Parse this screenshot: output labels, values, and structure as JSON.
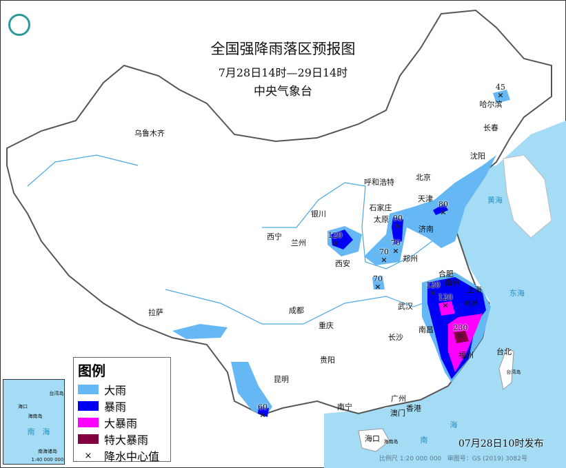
{
  "header": {
    "title": "全国强降雨落区预报图",
    "period": "7月28日14时—29日14时",
    "issuer": "中央气象台"
  },
  "colors": {
    "heavy_rain": "#66b8f5",
    "rainstorm": "#0000f5",
    "heavy_rainstorm": "#ff00ff",
    "extreme_rainstorm": "#800040",
    "sea": "#a4dcf5",
    "land": "#ffffff"
  },
  "legend": {
    "title": "图例",
    "items": [
      {
        "label": "大雨",
        "color": "#66b8f5"
      },
      {
        "label": "暴雨",
        "color": "#0000f5"
      },
      {
        "label": "大暴雨",
        "color": "#ff00ff"
      },
      {
        "label": "特大暴雨",
        "color": "#800040"
      },
      {
        "label": "降水中心值",
        "symbol": "×"
      }
    ]
  },
  "cities": [
    "乌鲁木齐",
    "哈尔滨",
    "长春",
    "沈阳",
    "呼和浩特",
    "北京",
    "天津",
    "石家庄",
    "太原",
    "银川",
    "济南",
    "西宁",
    "兰州",
    "郑州",
    "西安",
    "合肥",
    "南京",
    "上海",
    "武汉",
    "杭州",
    "拉萨",
    "成都",
    "重庆",
    "南昌",
    "长沙",
    "福州",
    "台北",
    "贵阳",
    "昆明",
    "南宁",
    "广州",
    "香港",
    "澳门",
    "海口"
  ],
  "rain_centers": [
    "45",
    "80",
    "90",
    "70",
    "70",
    "120",
    "70",
    "120",
    "120",
    "230",
    "60"
  ],
  "seas": [
    "黄海",
    "东海",
    "南",
    "海"
  ],
  "islands": [
    "台湾岛",
    "海南岛"
  ],
  "inset": {
    "labels": [
      "南",
      "海",
      "海口",
      "海南岛",
      "台湾岛",
      "南海诸岛"
    ],
    "scale": "1:40 000 000"
  },
  "footer": {
    "published": "07月28日10时发布",
    "scale": "比例尺 1:20 000 000",
    "map_approval": "审图号：GS (2019) 3082号"
  }
}
